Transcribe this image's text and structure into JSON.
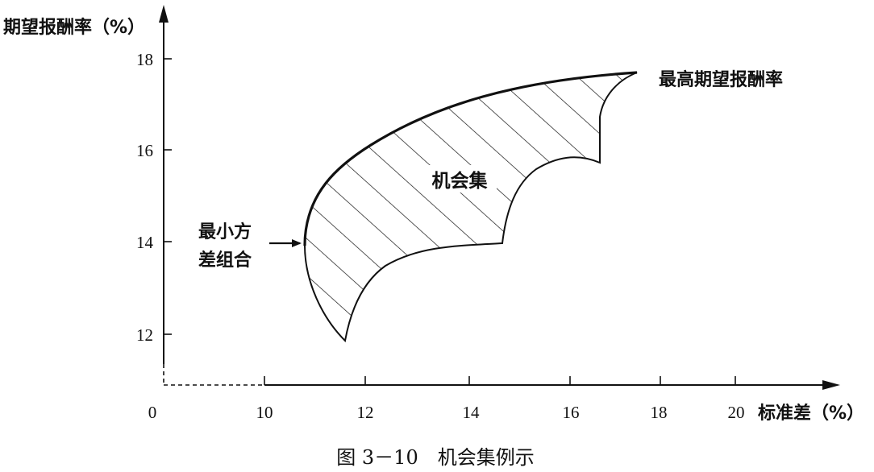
{
  "chart_data": {
    "type": "area",
    "y_axis_label": "期望报酬率（%）",
    "x_axis_label": "标准差（%）",
    "origin_label": "0",
    "y_ticks": [
      "18",
      "16",
      "14",
      "12"
    ],
    "x_ticks": [
      "10",
      "12",
      "14",
      "16",
      "18",
      "20"
    ],
    "region_label": "机会集",
    "annotations": {
      "max_return": "最高期望报酬率",
      "min_variance_line1": "最小方",
      "min_variance_line2": "差组合"
    },
    "caption": "图 3－10　机会集例示"
  }
}
